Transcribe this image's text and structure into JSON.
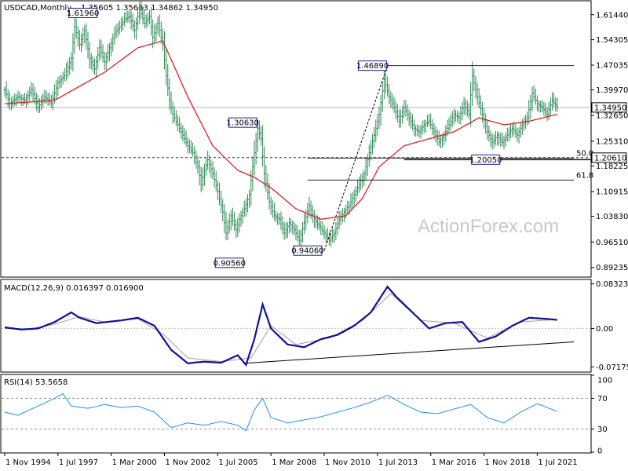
{
  "chart_data": {
    "type": "ohlc",
    "watermark": "ActionForex.com",
    "main": {
      "symbol_label": "USDCAD,Monthly",
      "ohlc_label": "1.35605 1.35663 1.34862 1.34950",
      "ylim": [
        0.867,
        1.652
      ],
      "y_ticks": [
        1.6144,
        1.54305,
        1.47035,
        1.3997,
        1.3265,
        1.2531,
        1.18225,
        1.10915,
        1.0383,
        0.9651,
        0.89235
      ],
      "current_price_label": "1.34950",
      "current_price": 1.3495,
      "price_path": [
        [
          0,
          1.4
        ],
        [
          3,
          1.36
        ],
        [
          8,
          1.38
        ],
        [
          12,
          1.37
        ],
        [
          16,
          1.4
        ],
        [
          20,
          1.35
        ],
        [
          24,
          1.38
        ],
        [
          28,
          1.36
        ],
        [
          32,
          1.42
        ],
        [
          36,
          1.44
        ],
        [
          40,
          1.49
        ],
        [
          42,
          1.58
        ],
        [
          45,
          1.53
        ],
        [
          48,
          1.57
        ],
        [
          51,
          1.49
        ],
        [
          54,
          1.46
        ],
        [
          57,
          1.52
        ],
        [
          60,
          1.48
        ],
        [
          63,
          1.52
        ],
        [
          66,
          1.56
        ],
        [
          69,
          1.58
        ],
        [
          72,
          1.6
        ],
        [
          75,
          1.61
        ],
        [
          78,
          1.57
        ],
        [
          81,
          1.63
        ],
        [
          84,
          1.59
        ],
        [
          87,
          1.61
        ],
        [
          89,
          1.55
        ],
        [
          92,
          1.59
        ],
        [
          95,
          1.53
        ],
        [
          97,
          1.44
        ],
        [
          99,
          1.37
        ],
        [
          101,
          1.33
        ],
        [
          104,
          1.3
        ],
        [
          107,
          1.27
        ],
        [
          110,
          1.24
        ],
        [
          113,
          1.22
        ],
        [
          116,
          1.18
        ],
        [
          118,
          1.13
        ],
        [
          120,
          1.17
        ],
        [
          122,
          1.2
        ],
        [
          125,
          1.16
        ],
        [
          128,
          1.11
        ],
        [
          131,
          1.05
        ],
        [
          133,
          0.99
        ],
        [
          136,
          1.04
        ],
        [
          139,
          1.0
        ],
        [
          141,
          1.03
        ],
        [
          144,
          1.06
        ],
        [
          147,
          1.1
        ],
        [
          150,
          1.22
        ],
        [
          152,
          1.29
        ],
        [
          154,
          1.26
        ],
        [
          156,
          1.16
        ],
        [
          159,
          1.08
        ],
        [
          162,
          1.04
        ],
        [
          165,
          1.03
        ],
        [
          168,
          0.99
        ],
        [
          171,
          1.02
        ],
        [
          174,
          1.0
        ],
        [
          177,
          0.97
        ],
        [
          180,
          1.02
        ],
        [
          183,
          1.07
        ],
        [
          186,
          1.03
        ],
        [
          189,
          1.01
        ],
        [
          192,
          0.99
        ],
        [
          195,
          0.97
        ],
        [
          198,
          0.99
        ],
        [
          201,
          1.03
        ],
        [
          204,
          1.05
        ],
        [
          207,
          1.07
        ],
        [
          210,
          1.1
        ],
        [
          213,
          1.13
        ],
        [
          216,
          1.16
        ],
        [
          219,
          1.22
        ],
        [
          222,
          1.27
        ],
        [
          225,
          1.33
        ],
        [
          228,
          1.43
        ],
        [
          231,
          1.38
        ],
        [
          234,
          1.35
        ],
        [
          237,
          1.31
        ],
        [
          240,
          1.35
        ],
        [
          243,
          1.32
        ],
        [
          246,
          1.29
        ],
        [
          249,
          1.28
        ],
        [
          252,
          1.3
        ],
        [
          255,
          1.31
        ],
        [
          258,
          1.28
        ],
        [
          261,
          1.25
        ],
        [
          264,
          1.27
        ],
        [
          267,
          1.3
        ],
        [
          270,
          1.33
        ],
        [
          273,
          1.32
        ],
        [
          276,
          1.36
        ],
        [
          279,
          1.33
        ],
        [
          281,
          1.44
        ],
        [
          284,
          1.38
        ],
        [
          287,
          1.33
        ],
        [
          290,
          1.28
        ],
        [
          293,
          1.25
        ],
        [
          296,
          1.27
        ],
        [
          299,
          1.25
        ],
        [
          302,
          1.27
        ],
        [
          305,
          1.29
        ],
        [
          308,
          1.27
        ],
        [
          311,
          1.3
        ],
        [
          314,
          1.32
        ],
        [
          317,
          1.39
        ],
        [
          320,
          1.36
        ],
        [
          323,
          1.35
        ],
        [
          326,
          1.33
        ],
        [
          329,
          1.37
        ],
        [
          332,
          1.35
        ]
      ],
      "sma_path": [
        [
          0,
          1.36
        ],
        [
          30,
          1.37
        ],
        [
          60,
          1.45
        ],
        [
          80,
          1.52
        ],
        [
          95,
          1.54
        ],
        [
          110,
          1.38
        ],
        [
          125,
          1.24
        ],
        [
          140,
          1.17
        ],
        [
          150,
          1.15
        ],
        [
          160,
          1.12
        ],
        [
          175,
          1.06
        ],
        [
          190,
          1.03
        ],
        [
          205,
          1.04
        ],
        [
          215,
          1.09
        ],
        [
          225,
          1.18
        ],
        [
          240,
          1.24
        ],
        [
          255,
          1.26
        ],
        [
          270,
          1.28
        ],
        [
          285,
          1.32
        ],
        [
          300,
          1.3
        ],
        [
          315,
          1.31
        ],
        [
          332,
          1.33
        ]
      ],
      "labels": [
        {
          "text": "1.61960",
          "m": 56,
          "v": 1.6196,
          "pos": "left"
        },
        {
          "text": "1.30630",
          "m": 152,
          "v": 1.3063,
          "pos": "left"
        },
        {
          "text": "0.90560",
          "m": 144,
          "v": 0.9056,
          "pos": "left"
        },
        {
          "text": "0.94060",
          "m": 191,
          "v": 0.9406,
          "pos": "left"
        },
        {
          "text": "1.46890",
          "m": 230,
          "v": 1.4689,
          "pos": "left"
        },
        {
          "text": "1.20050",
          "m": 298,
          "v": 1.2005,
          "pos": "left"
        }
      ],
      "resistance": {
        "v": 1.4689,
        "m_from": 230,
        "m_to": 342
      },
      "support": {
        "v": 1.2005,
        "m_from": 240,
        "m_to": 342
      },
      "dashed_level": {
        "v": 1.2061,
        "label": "1.20610"
      },
      "fib_50": {
        "v": 1.2047,
        "m_from": 182,
        "m_to": 342,
        "label": "50.0"
      },
      "fib_618": {
        "v": 1.142,
        "m_from": 182,
        "m_to": 342,
        "label": "61.8"
      },
      "trendline_up": {
        "m1": 192,
        "v1": 0.9406,
        "m2": 230,
        "v2": 1.4689
      }
    },
    "macd": {
      "label": "MACD(12,26,9) 0.016397 0.016900",
      "ylim": [
        -0.08,
        0.09
      ],
      "y_ticks": [
        0.083235,
        0.0,
        -0.071752
      ],
      "y_tick_labels": [
        "0.083235",
        "0.00",
        "-0.071752"
      ],
      "line_path": [
        [
          0,
          0.002
        ],
        [
          10,
          -0.002
        ],
        [
          20,
          0.0
        ],
        [
          30,
          0.012
        ],
        [
          40,
          0.03
        ],
        [
          45,
          0.02
        ],
        [
          55,
          0.01
        ],
        [
          70,
          0.015
        ],
        [
          80,
          0.02
        ],
        [
          90,
          0.005
        ],
        [
          100,
          -0.04
        ],
        [
          110,
          -0.065
        ],
        [
          120,
          -0.062
        ],
        [
          130,
          -0.064
        ],
        [
          140,
          -0.05
        ],
        [
          145,
          -0.068
        ],
        [
          150,
          -0.02
        ],
        [
          155,
          0.045
        ],
        [
          160,
          0.0
        ],
        [
          170,
          -0.03
        ],
        [
          180,
          -0.035
        ],
        [
          190,
          -0.02
        ],
        [
          200,
          -0.012
        ],
        [
          210,
          0.005
        ],
        [
          220,
          0.03
        ],
        [
          230,
          0.078
        ],
        [
          235,
          0.06
        ],
        [
          245,
          0.03
        ],
        [
          255,
          0.0
        ],
        [
          265,
          0.01
        ],
        [
          275,
          0.012
        ],
        [
          285,
          -0.025
        ],
        [
          295,
          -0.015
        ],
        [
          305,
          0.005
        ],
        [
          315,
          0.02
        ],
        [
          325,
          0.018
        ],
        [
          332,
          0.016
        ]
      ],
      "signal_path": [
        [
          0,
          0.0
        ],
        [
          15,
          -0.001
        ],
        [
          30,
          0.008
        ],
        [
          45,
          0.022
        ],
        [
          60,
          0.012
        ],
        [
          80,
          0.018
        ],
        [
          95,
          -0.01
        ],
        [
          110,
          -0.055
        ],
        [
          130,
          -0.062
        ],
        [
          148,
          -0.055
        ],
        [
          160,
          0.005
        ],
        [
          175,
          -0.03
        ],
        [
          195,
          -0.018
        ],
        [
          215,
          0.015
        ],
        [
          232,
          0.065
        ],
        [
          250,
          0.015
        ],
        [
          270,
          0.01
        ],
        [
          290,
          -0.018
        ],
        [
          310,
          0.012
        ],
        [
          332,
          0.017
        ]
      ],
      "trendline": {
        "m1": 144,
        "v1": -0.065,
        "m2": 342,
        "v2": -0.025
      }
    },
    "rsi": {
      "label": "RSI(14) 53.5658",
      "ylim": [
        0,
        100
      ],
      "y_ticks": [
        100,
        70,
        30,
        0
      ],
      "levels": [
        70,
        30
      ],
      "line_path": [
        [
          0,
          52
        ],
        [
          8,
          48
        ],
        [
          15,
          55
        ],
        [
          22,
          62
        ],
        [
          30,
          70
        ],
        [
          35,
          76
        ],
        [
          40,
          60
        ],
        [
          50,
          57
        ],
        [
          60,
          62
        ],
        [
          70,
          58
        ],
        [
          80,
          60
        ],
        [
          90,
          52
        ],
        [
          100,
          32
        ],
        [
          110,
          38
        ],
        [
          120,
          35
        ],
        [
          130,
          40
        ],
        [
          140,
          35
        ],
        [
          145,
          28
        ],
        [
          150,
          55
        ],
        [
          155,
          70
        ],
        [
          160,
          45
        ],
        [
          170,
          38
        ],
        [
          180,
          42
        ],
        [
          190,
          46
        ],
        [
          200,
          52
        ],
        [
          210,
          58
        ],
        [
          220,
          65
        ],
        [
          230,
          74
        ],
        [
          240,
          62
        ],
        [
          250,
          52
        ],
        [
          260,
          50
        ],
        [
          270,
          56
        ],
        [
          280,
          62
        ],
        [
          290,
          45
        ],
        [
          300,
          38
        ],
        [
          310,
          52
        ],
        [
          320,
          63
        ],
        [
          326,
          58
        ],
        [
          332,
          53
        ]
      ]
    },
    "x_axis": {
      "ticks": [
        {
          "label": "1 Nov 1994",
          "m": 0
        },
        {
          "label": "1 Jul 1997",
          "m": 32
        },
        {
          "label": "1 Mar 2000",
          "m": 64
        },
        {
          "label": "1 Nov 2002",
          "m": 96
        },
        {
          "label": "1 Jul 2005",
          "m": 128
        },
        {
          "label": "1 Mar 2008",
          "m": 160
        },
        {
          "label": "1 Nov 2010",
          "m": 192
        },
        {
          "label": "1 Jul 2013",
          "m": 224
        },
        {
          "label": "1 Mar 2016",
          "m": 256
        },
        {
          "label": "1 Nov 2018",
          "m": 288
        },
        {
          "label": "1 Jul 2021",
          "m": 320
        }
      ]
    },
    "colors": {
      "bars": "#2e8b57",
      "sma": "#e02020",
      "macd": "#10109a",
      "signal": "#a0a0a0",
      "rsi": "#1e90ff",
      "label_border": "#1a1aa0",
      "level_line": "#222222"
    }
  }
}
